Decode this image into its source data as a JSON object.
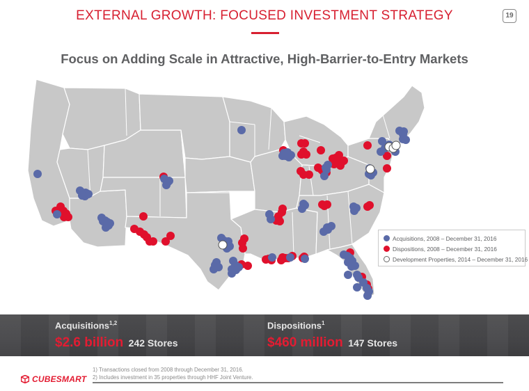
{
  "header": {
    "title": "EXTERNAL GROWTH: FOCUSED INVESTMENT STRATEGY",
    "page_number": "19",
    "subtitle": "Focus on Adding Scale in Attractive, High-Barrier-to-Entry Markets"
  },
  "colors": {
    "accent": "#d71f30",
    "acquisition": "#5a6aa8",
    "disposition": "#e0102c",
    "development": "#ffffff",
    "map_fill": "#c8c8c8",
    "map_border": "#ffffff",
    "banner": "#4a4a4c"
  },
  "map": {
    "acquisitions": [
      [
        24,
        145
      ],
      [
        85,
        169
      ],
      [
        89,
        172
      ],
      [
        93,
        172
      ],
      [
        97,
        174
      ],
      [
        92,
        177
      ],
      [
        88,
        176
      ],
      [
        52,
        203
      ],
      [
        116,
        208
      ],
      [
        118,
        213
      ],
      [
        121,
        212
      ],
      [
        124,
        214
      ],
      [
        126,
        219
      ],
      [
        122,
        222
      ],
      [
        128,
        216
      ],
      [
        206,
        152
      ],
      [
        211,
        157
      ],
      [
        213,
        155
      ],
      [
        209,
        161
      ],
      [
        317,
        82
      ],
      [
        378,
        115
      ],
      [
        380,
        119
      ],
      [
        385,
        121
      ],
      [
        383,
        114
      ],
      [
        388,
        118
      ],
      [
        376,
        119
      ],
      [
        404,
        195
      ],
      [
        406,
        188
      ],
      [
        408,
        190
      ],
      [
        438,
        136
      ],
      [
        441,
        132
      ],
      [
        439,
        139
      ],
      [
        436,
        148
      ],
      [
        440,
        222
      ],
      [
        435,
        228
      ],
      [
        441,
        225
      ],
      [
        446,
        220
      ],
      [
        478,
        192
      ],
      [
        482,
        194
      ],
      [
        479,
        198
      ],
      [
        288,
        237
      ],
      [
        292,
        241
      ],
      [
        294,
        245
      ],
      [
        298,
        242
      ],
      [
        300,
        249
      ],
      [
        296,
        252
      ],
      [
        281,
        272
      ],
      [
        279,
        276
      ],
      [
        284,
        279
      ],
      [
        277,
        282
      ],
      [
        305,
        270
      ],
      [
        308,
        276
      ],
      [
        303,
        282
      ],
      [
        309,
        283
      ],
      [
        313,
        279
      ],
      [
        303,
        288
      ],
      [
        357,
        203
      ],
      [
        359,
        210
      ],
      [
        361,
        265
      ],
      [
        387,
        265
      ],
      [
        408,
        267
      ],
      [
        464,
        261
      ],
      [
        469,
        263
      ],
      [
        473,
        266
      ],
      [
        470,
        272
      ],
      [
        476,
        270
      ],
      [
        475,
        278
      ],
      [
        480,
        277
      ],
      [
        483,
        290
      ],
      [
        470,
        290
      ],
      [
        485,
        294
      ],
      [
        492,
        301
      ],
      [
        497,
        309
      ],
      [
        500,
        314
      ],
      [
        498,
        320
      ],
      [
        483,
        308
      ],
      [
        501,
        137
      ],
      [
        503,
        147
      ],
      [
        506,
        143
      ],
      [
        500,
        145
      ],
      [
        519,
        98
      ],
      [
        523,
        108
      ],
      [
        517,
        113
      ],
      [
        529,
        103
      ],
      [
        544,
        83
      ],
      [
        550,
        84
      ],
      [
        553,
        96
      ],
      [
        549,
        88
      ],
      [
        538,
        113
      ],
      [
        549,
        95
      ]
    ],
    "dispositions": [
      [
        57,
        192
      ],
      [
        61,
        198
      ],
      [
        55,
        200
      ],
      [
        65,
        202
      ],
      [
        68,
        207
      ],
      [
        62,
        207
      ],
      [
        50,
        198
      ],
      [
        205,
        149
      ],
      [
        176,
        206
      ],
      [
        163,
        224
      ],
      [
        171,
        228
      ],
      [
        177,
        232
      ],
      [
        181,
        236
      ],
      [
        185,
        242
      ],
      [
        190,
        242
      ],
      [
        208,
        242
      ],
      [
        215,
        234
      ],
      [
        318,
        244
      ],
      [
        319,
        252
      ],
      [
        321,
        238
      ],
      [
        368,
        210
      ],
      [
        370,
        206
      ],
      [
        372,
        213
      ],
      [
        375,
        200
      ],
      [
        376,
        195
      ],
      [
        367,
        212
      ],
      [
        403,
        101
      ],
      [
        406,
        113
      ],
      [
        403,
        117
      ],
      [
        408,
        101
      ],
      [
        410,
        117
      ],
      [
        377,
        111
      ],
      [
        431,
        111
      ],
      [
        402,
        141
      ],
      [
        406,
        146
      ],
      [
        414,
        146
      ],
      [
        427,
        136
      ],
      [
        432,
        139
      ],
      [
        434,
        141
      ],
      [
        439,
        143
      ],
      [
        448,
        123
      ],
      [
        452,
        122
      ],
      [
        457,
        118
      ],
      [
        461,
        128
      ],
      [
        464,
        126
      ],
      [
        459,
        133
      ],
      [
        450,
        131
      ],
      [
        454,
        127
      ],
      [
        498,
        104
      ],
      [
        433,
        189
      ],
      [
        436,
        191
      ],
      [
        440,
        189
      ],
      [
        498,
        192
      ],
      [
        501,
        190
      ],
      [
        352,
        268
      ],
      [
        356,
        267
      ],
      [
        360,
        269
      ],
      [
        374,
        269
      ],
      [
        376,
        265
      ],
      [
        380,
        266
      ],
      [
        384,
        266
      ],
      [
        390,
        263
      ],
      [
        405,
        266
      ],
      [
        407,
        264
      ],
      [
        473,
        258
      ],
      [
        490,
        293
      ],
      [
        497,
        304
      ],
      [
        499,
        310
      ],
      [
        317,
        275
      ],
      [
        326,
        277
      ],
      [
        526,
        119
      ],
      [
        526,
        137
      ]
    ],
    "developments": [
      [
        290,
        247
      ],
      [
        529,
        106
      ],
      [
        535,
        108
      ],
      [
        539,
        104
      ],
      [
        502,
        138
      ]
    ]
  },
  "legend": {
    "acquisitions": "Acquisitions, 2008 – December 31, 2016",
    "dispositions": "Dispositions, 2008 – December 31, 2016",
    "development": "Development Properties, 2014 – December 31, 2016"
  },
  "stats": {
    "acquisitions": {
      "label": "Acquisitions",
      "footnote": "1,2",
      "amount": "$2.6 billion",
      "stores": "242 Stores"
    },
    "dispositions": {
      "label": "Dispositions",
      "footnote": "1",
      "amount": "$460 million",
      "stores": "147 Stores"
    }
  },
  "footnotes": [
    "1) Transactions closed from 2008 through December 31, 2016.",
    "2) Includes investment in 35 properties through HHF Joint Venture."
  ],
  "logo": {
    "text": "CUBESMART"
  }
}
